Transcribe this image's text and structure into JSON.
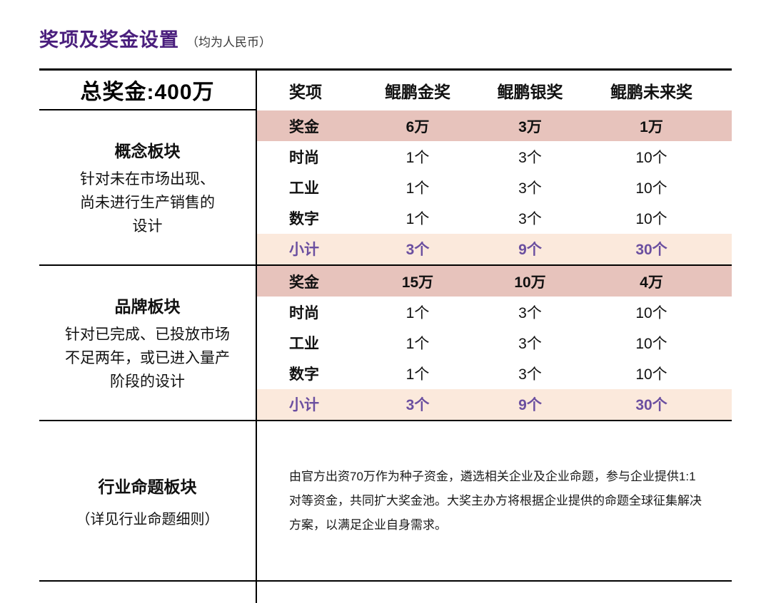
{
  "header": {
    "title": "奖项及奖金设置",
    "subtitle": "（均为人民币）"
  },
  "chart_data": {
    "type": "table",
    "title": "奖项及奖金设置（均为人民币）",
    "total_prize": "总奖金:400万",
    "columns": [
      "奖项",
      "鲲鹏金奖",
      "鲲鹏银奖",
      "鲲鹏未来奖"
    ],
    "sections": [
      {
        "name": "概念板块",
        "description": "针对未在市场出现、\n尚未进行生产销售的\n设计",
        "rows": [
          {
            "label": "奖金",
            "values": [
              "6万",
              "3万",
              "1万"
            ]
          },
          {
            "label": "时尚",
            "values": [
              "1个",
              "3个",
              "10个"
            ]
          },
          {
            "label": "工业",
            "values": [
              "1个",
              "3个",
              "10个"
            ]
          },
          {
            "label": "数字",
            "values": [
              "1个",
              "3个",
              "10个"
            ]
          },
          {
            "label": "小计",
            "values": [
              "3个",
              "9个",
              "30个"
            ]
          }
        ]
      },
      {
        "name": "品牌板块",
        "description": "针对已完成、已投放市场\n不足两年，或已进入量产\n阶段的设计",
        "rows": [
          {
            "label": "奖金",
            "values": [
              "15万",
              "10万",
              "4万"
            ]
          },
          {
            "label": "时尚",
            "values": [
              "1个",
              "3个",
              "10个"
            ]
          },
          {
            "label": "工业",
            "values": [
              "1个",
              "3个",
              "10个"
            ]
          },
          {
            "label": "数字",
            "values": [
              "1个",
              "3个",
              "10个"
            ]
          },
          {
            "label": "小计",
            "values": [
              "3个",
              "9个",
              "30个"
            ]
          }
        ]
      }
    ],
    "industry": {
      "name": "行业命题板块",
      "note": "（详见行业命题细则）",
      "description": "由官方出资70万作为种子资金，遴选相关企业及企业命题，参与企业提供1:1对等资金，共同扩大奖金池。大奖主办方将根据企业提供的命题全球征集解决方案，以满足企业自身需求。"
    },
    "layout_hints": {
      "grid": "off",
      "section_dividers": "black horizontal rules",
      "prize_rows_highlight": "dusty-pink",
      "subtotal_rows_highlight": "light-peach"
    }
  },
  "colors": {
    "accent_purple": "#4A1F7D",
    "prize_row_bg": "#E7C3BC",
    "subtotal_row_bg": "#FBE9DC",
    "subtotal_text": "#6B4FA0",
    "border": "#000000"
  }
}
